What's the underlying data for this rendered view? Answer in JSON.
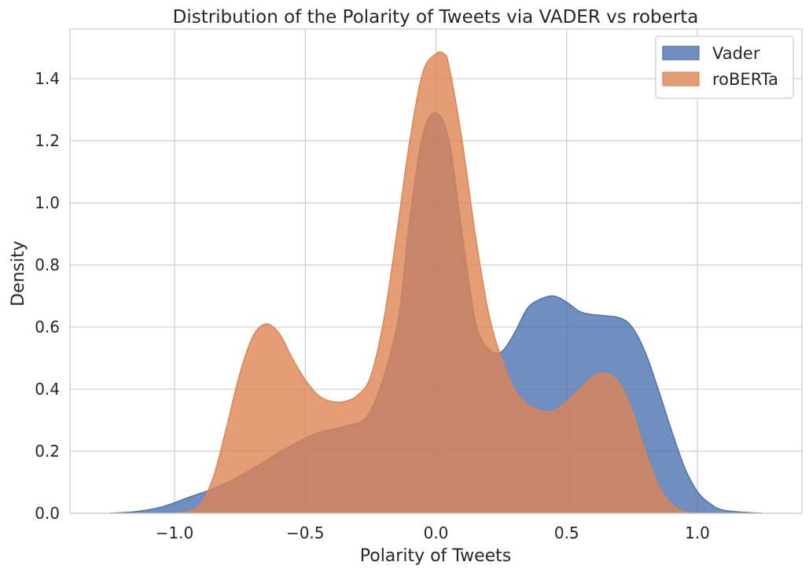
{
  "chart_data": {
    "type": "area",
    "title": "Distribution of the Polarity of Tweets via VADER vs roberta",
    "xlabel": "Polarity of Tweets",
    "ylabel": "Density",
    "xlim": [
      -1.4,
      1.4
    ],
    "ylim": [
      0,
      1.56
    ],
    "xticks": [
      -1.0,
      -0.5,
      0.0,
      0.5,
      1.0
    ],
    "xtick_labels": [
      "−1.0",
      "−0.5",
      "0.0",
      "0.5",
      "1.0"
    ],
    "yticks": [
      0.0,
      0.2,
      0.4,
      0.6,
      0.8,
      1.0,
      1.2,
      1.4
    ],
    "ytick_labels": [
      "0.0",
      "0.2",
      "0.4",
      "0.6",
      "0.8",
      "1.0",
      "1.2",
      "1.4"
    ],
    "grid": true,
    "legend_position": "top-right",
    "series": [
      {
        "name": "Vader",
        "fill": "#4c72b0",
        "stroke": "#4c72b0",
        "x": [
          -1.25,
          -1.15,
          -1.05,
          -0.95,
          -0.85,
          -0.75,
          -0.65,
          -0.55,
          -0.45,
          -0.35,
          -0.25,
          -0.15,
          -0.1,
          -0.05,
          0.0,
          0.05,
          0.1,
          0.15,
          0.2,
          0.25,
          0.3,
          0.35,
          0.4,
          0.45,
          0.5,
          0.55,
          0.6,
          0.7,
          0.75,
          0.8,
          0.85,
          0.9,
          0.95,
          1.0,
          1.05,
          1.1,
          1.2,
          1.25
        ],
        "y": [
          0.0,
          0.005,
          0.02,
          0.05,
          0.08,
          0.12,
          0.17,
          0.22,
          0.26,
          0.28,
          0.33,
          0.6,
          0.95,
          1.22,
          1.29,
          1.2,
          0.9,
          0.62,
          0.53,
          0.52,
          0.58,
          0.66,
          0.69,
          0.7,
          0.68,
          0.65,
          0.64,
          0.63,
          0.6,
          0.52,
          0.4,
          0.27,
          0.15,
          0.07,
          0.03,
          0.01,
          0.002,
          0.0
        ]
      },
      {
        "name": "roBERTa",
        "fill": "#dd8452",
        "stroke": "#dd8452",
        "x": [
          -1.0,
          -0.95,
          -0.9,
          -0.85,
          -0.8,
          -0.75,
          -0.7,
          -0.65,
          -0.6,
          -0.55,
          -0.5,
          -0.45,
          -0.4,
          -0.35,
          -0.3,
          -0.25,
          -0.2,
          -0.15,
          -0.1,
          -0.05,
          0.0,
          0.03,
          0.05,
          0.1,
          0.15,
          0.2,
          0.25,
          0.3,
          0.35,
          0.4,
          0.45,
          0.5,
          0.55,
          0.6,
          0.65,
          0.7,
          0.75,
          0.8,
          0.85,
          0.9,
          0.95,
          1.0
        ],
        "y": [
          0.0,
          0.005,
          0.03,
          0.12,
          0.28,
          0.45,
          0.57,
          0.61,
          0.58,
          0.5,
          0.43,
          0.38,
          0.36,
          0.36,
          0.38,
          0.44,
          0.62,
          0.9,
          1.2,
          1.42,
          1.48,
          1.48,
          1.44,
          1.2,
          0.9,
          0.65,
          0.5,
          0.4,
          0.35,
          0.33,
          0.33,
          0.36,
          0.4,
          0.44,
          0.45,
          0.42,
          0.33,
          0.2,
          0.09,
          0.03,
          0.005,
          0.0
        ]
      }
    ]
  }
}
